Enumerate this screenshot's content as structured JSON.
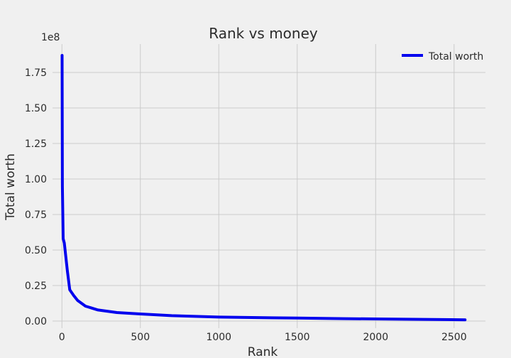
{
  "chart_data": {
    "type": "line",
    "title": "Rank vs money",
    "xlabel": "Rank",
    "ylabel": "Total worth",
    "y_offset_label": "1e8",
    "xlim": [
      -60,
      2700
    ],
    "ylim": [
      -0.05,
      1.95
    ],
    "x_ticks": [
      0,
      500,
      1000,
      1500,
      2000,
      2500
    ],
    "x_tick_labels": [
      "0",
      "500",
      "1000",
      "1500",
      "2000",
      "2500"
    ],
    "y_ticks": [
      0,
      0.25,
      0.5,
      0.75,
      1.0,
      1.25,
      1.5,
      1.75
    ],
    "y_tick_labels": [
      "0.00",
      "0.25",
      "0.50",
      "0.75",
      "1.00",
      "1.25",
      "1.50",
      "1.75"
    ],
    "grid": true,
    "legend_position": "top-right",
    "series": [
      {
        "name": "Total worth",
        "color": "#0000ee",
        "x": [
          1,
          3,
          8,
          15,
          25,
          35,
          50,
          75,
          100,
          150,
          230,
          350,
          500,
          700,
          1000,
          1500,
          1800,
          2000,
          2300,
          2570
        ],
        "y": [
          1.87,
          0.95,
          0.58,
          0.55,
          0.45,
          0.35,
          0.22,
          0.18,
          0.145,
          0.105,
          0.078,
          0.06,
          0.05,
          0.038,
          0.028,
          0.021,
          0.017,
          0.015,
          0.012,
          0.009
        ]
      }
    ]
  }
}
